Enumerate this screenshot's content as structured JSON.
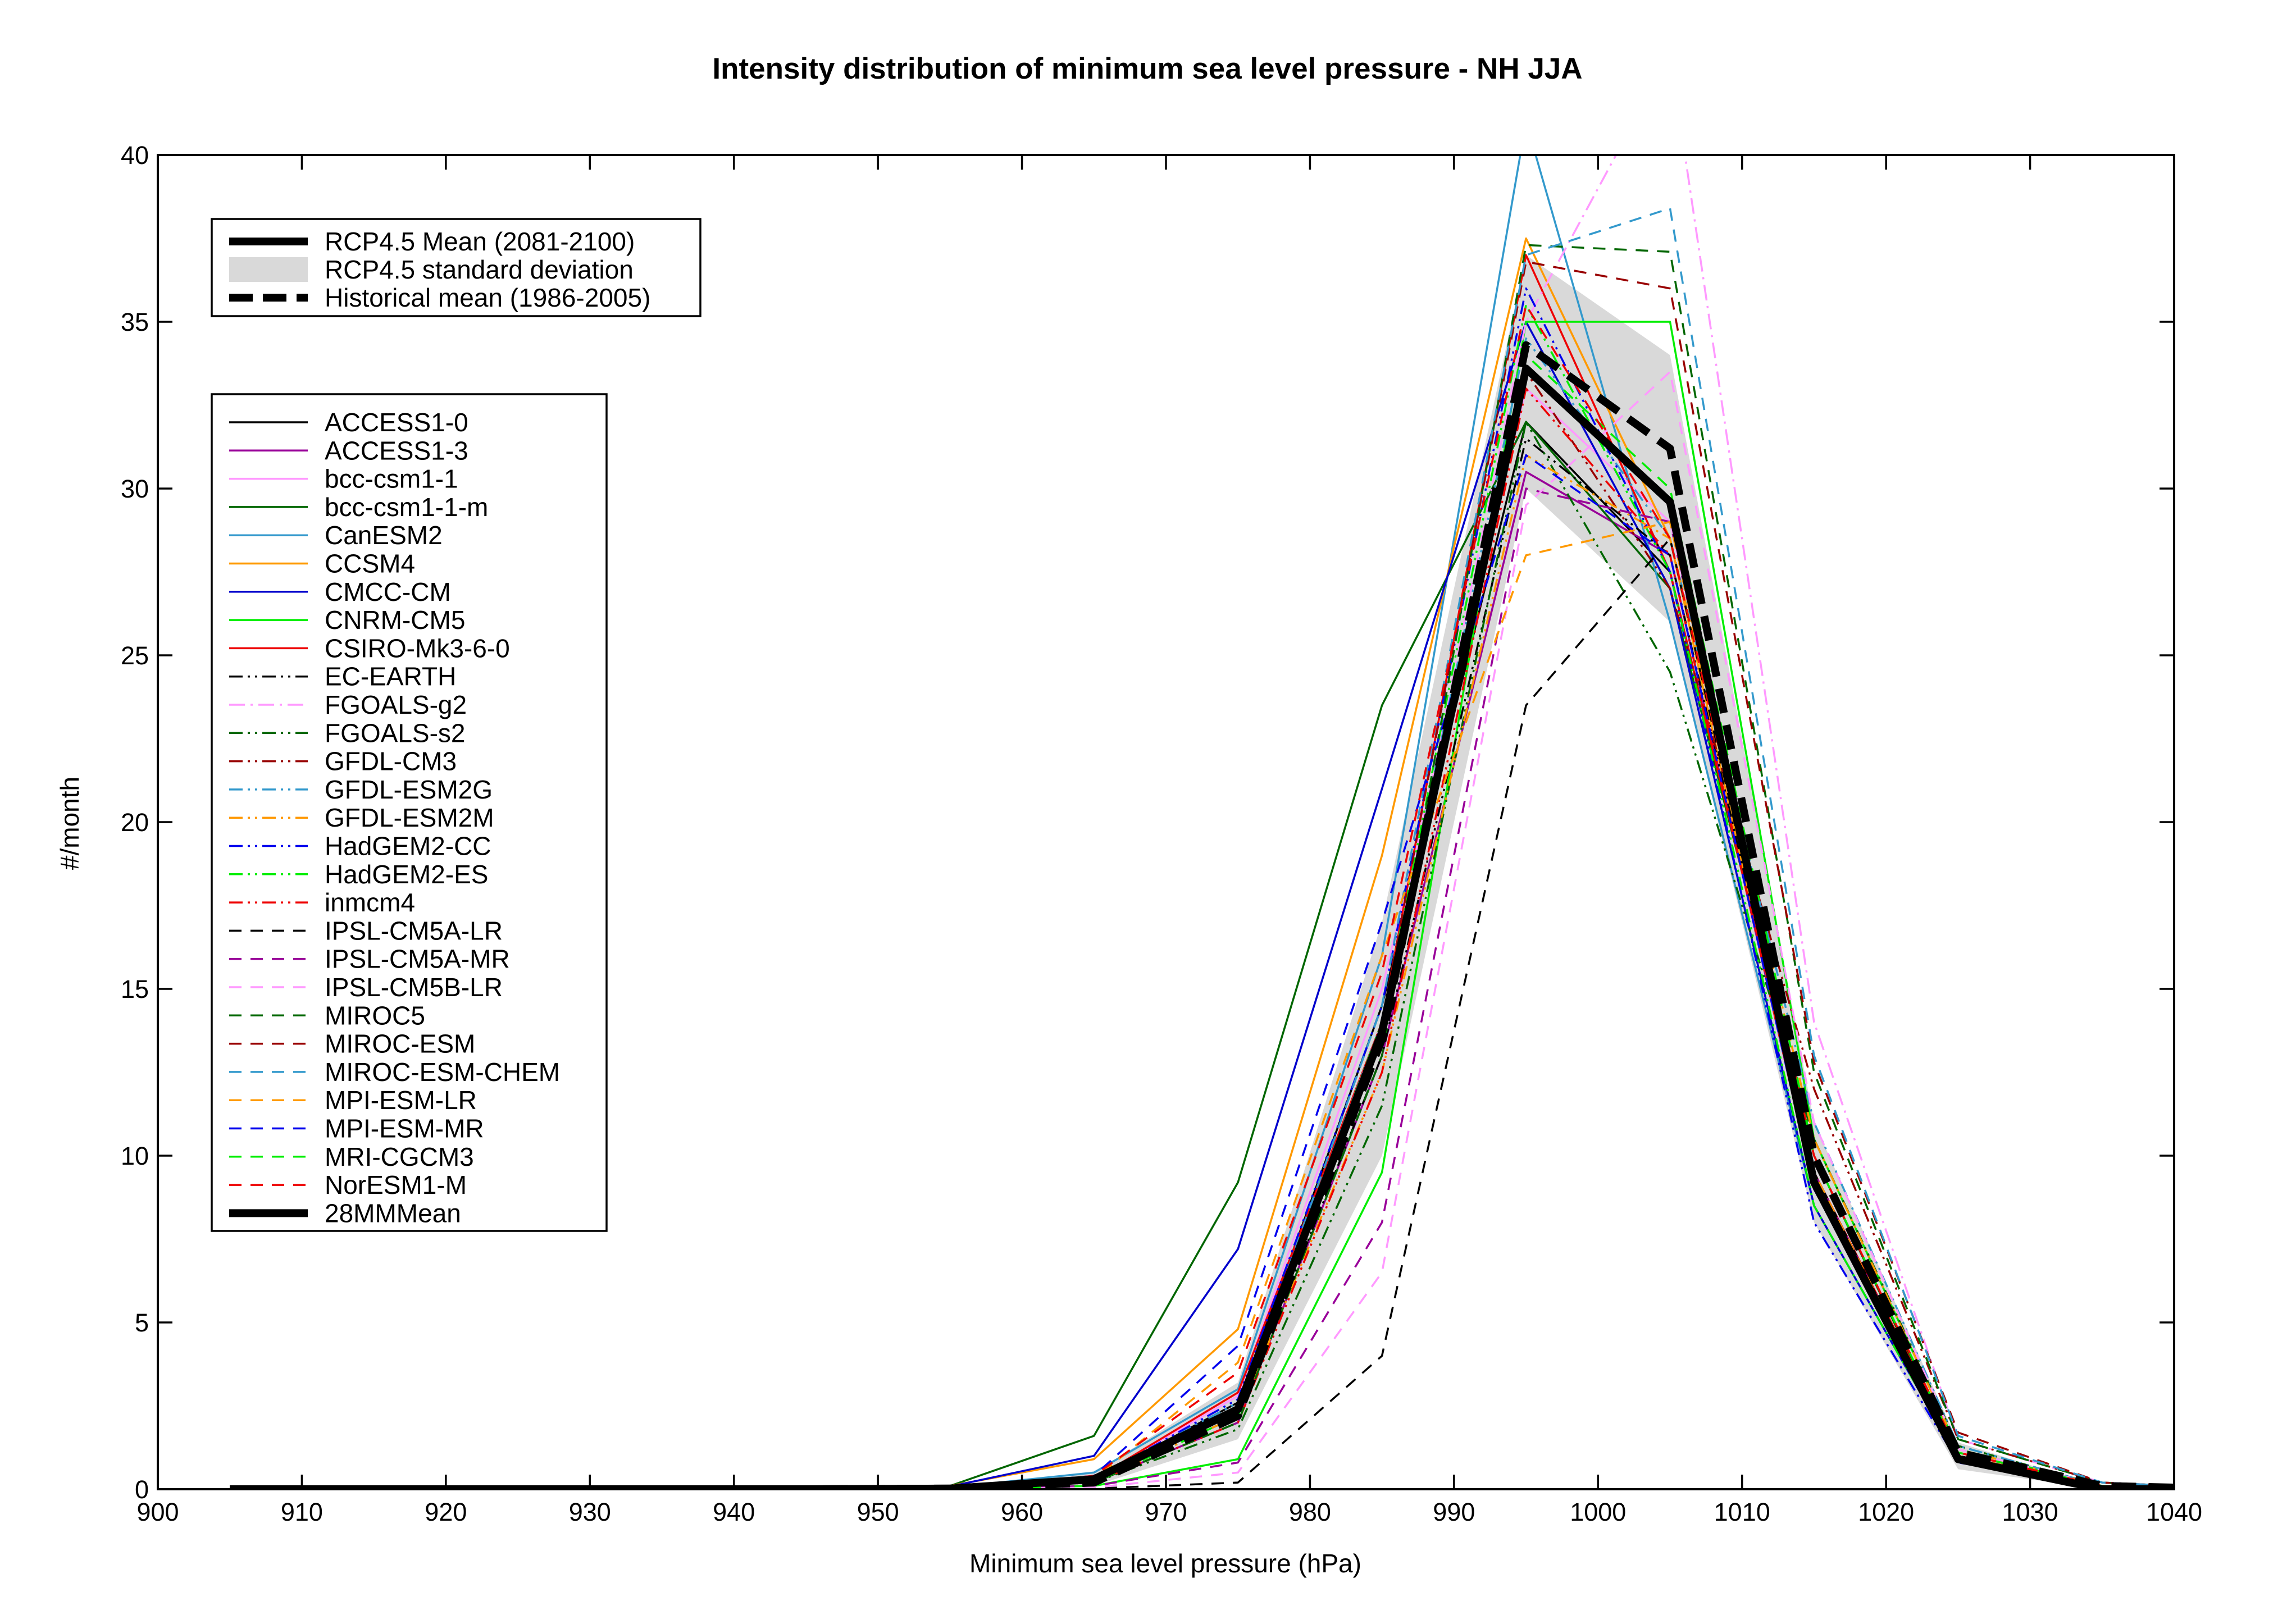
{
  "chart_data": {
    "type": "line",
    "title": "Intensity distribution of minimum sea level pressure - NH JJA",
    "xlabel": "Minimum sea level pressure (hPa)",
    "ylabel": "#/month",
    "xlim": [
      900,
      1040
    ],
    "ylim": [
      0,
      40
    ],
    "xticks": [
      900,
      910,
      920,
      930,
      940,
      950,
      960,
      970,
      980,
      990,
      1000,
      1010,
      1020,
      1030,
      1040
    ],
    "yticks": [
      0,
      5,
      10,
      15,
      20,
      25,
      30,
      35,
      40
    ],
    "grid": false,
    "x": [
      905,
      915,
      925,
      935,
      945,
      955,
      965,
      975,
      985,
      995,
      1005,
      1015,
      1025,
      1035,
      1045
    ],
    "summary_legend": [
      {
        "label": "RCP4.5 Mean (2081-2100)",
        "style": "thick-solid",
        "color": "#000000"
      },
      {
        "label": "RCP4.5 standard deviation",
        "style": "band",
        "color": "#d9d9d9"
      },
      {
        "label": "Historical mean (1986-2005)",
        "style": "thick-dashed",
        "color": "#000000"
      }
    ],
    "std_band": {
      "upper": [
        0,
        0,
        0,
        0,
        0,
        0.05,
        0.5,
        3.2,
        17,
        37,
        34,
        11,
        1.4,
        0.05,
        0
      ],
      "lower": [
        0,
        0,
        0,
        0,
        0,
        0.01,
        0.1,
        1.5,
        10,
        30,
        26,
        8,
        0.6,
        0.0,
        0
      ]
    },
    "historical_mean": [
      0,
      0,
      0,
      0,
      0,
      0.02,
      0.2,
      2.2,
      13.5,
      34.3,
      31.2,
      10.0,
      1.1,
      0.1,
      0
    ],
    "series": [
      {
        "name": "ACCESS1-0",
        "color": "#000000",
        "dash": "solid",
        "values": [
          0,
          0,
          0,
          0,
          0,
          0.03,
          0.3,
          2.6,
          14.5,
          32.0,
          27.5,
          9.5,
          1.0,
          0.1,
          0
        ]
      },
      {
        "name": "ACCESS1-3",
        "color": "#990099",
        "dash": "solid",
        "values": [
          0,
          0,
          0,
          0,
          0,
          0.02,
          0.2,
          2.0,
          13.0,
          30.5,
          28.0,
          9.0,
          1.0,
          0.1,
          0
        ]
      },
      {
        "name": "bcc-csm1-1",
        "color": "#ff99ff",
        "dash": "solid",
        "values": [
          0,
          0,
          0,
          0,
          0,
          0.03,
          0.3,
          2.8,
          15.0,
          33.0,
          29.0,
          9.5,
          1.1,
          0.1,
          0
        ]
      },
      {
        "name": "bcc-csm1-1-m",
        "color": "#006600",
        "dash": "solid",
        "values": [
          0,
          0,
          0,
          0,
          0,
          0.1,
          1.6,
          9.2,
          23.5,
          32.0,
          27.0,
          10.0,
          1.0,
          0.1,
          0
        ]
      },
      {
        "name": "CanESM2",
        "color": "#3399cc",
        "dash": "solid",
        "values": [
          0,
          0,
          0,
          0,
          0,
          0.05,
          0.5,
          3.0,
          16.0,
          41.0,
          26.0,
          8.5,
          0.9,
          0.1,
          0
        ]
      },
      {
        "name": "CCSM4",
        "color": "#ff9900",
        "dash": "solid",
        "values": [
          0,
          0,
          0,
          0,
          0,
          0.1,
          0.9,
          4.8,
          19.0,
          37.5,
          28.5,
          9.0,
          1.0,
          0.1,
          0
        ]
      },
      {
        "name": "CMCC-CM",
        "color": "#0000cc",
        "dash": "solid",
        "values": [
          0,
          0,
          0,
          0,
          0,
          0.08,
          1.0,
          7.2,
          21.0,
          35.0,
          27.0,
          8.5,
          0.9,
          0.1,
          0
        ]
      },
      {
        "name": "CNRM-CM5",
        "color": "#00ee00",
        "dash": "solid",
        "values": [
          0,
          0,
          0,
          0,
          0,
          0.01,
          0.1,
          0.9,
          9.5,
          35.0,
          35.0,
          10.5,
          1.2,
          0.1,
          0
        ]
      },
      {
        "name": "CSIRO-Mk3-6-0",
        "color": "#ee0000",
        "dash": "solid",
        "values": [
          0,
          0,
          0,
          0,
          0,
          0.03,
          0.3,
          2.9,
          14.0,
          37.0,
          27.5,
          9.5,
          1.1,
          0.1,
          0
        ]
      },
      {
        "name": "EC-EARTH",
        "color": "#000000",
        "dash": "dashdotdot",
        "values": [
          0,
          0,
          0,
          0,
          0,
          0.02,
          0.2,
          2.2,
          13.0,
          31.5,
          28.0,
          9.5,
          1.0,
          0.1,
          0
        ]
      },
      {
        "name": "FGOALS-g2",
        "color": "#ff99ff",
        "dash": "dashdot",
        "values": [
          0,
          0,
          0,
          0,
          0,
          0.02,
          0.3,
          2.5,
          14.0,
          35.0,
          43.0,
          14.0,
          1.5,
          0.2,
          0
        ]
      },
      {
        "name": "FGOALS-s2",
        "color": "#006600",
        "dash": "dashdotdot",
        "values": [
          0,
          0,
          0,
          0,
          0,
          0.02,
          0.2,
          1.8,
          11.5,
          32.0,
          24.5,
          10.5,
          1.3,
          0.1,
          0
        ]
      },
      {
        "name": "GFDL-CM3",
        "color": "#990000",
        "dash": "dashdotdot",
        "values": [
          0,
          0,
          0,
          0,
          0,
          0.03,
          0.3,
          2.4,
          13.5,
          33.5,
          27.0,
          12.0,
          1.5,
          0.2,
          0
        ]
      },
      {
        "name": "GFDL-ESM2G",
        "color": "#3399cc",
        "dash": "dashdotdot",
        "values": [
          0,
          0,
          0,
          0,
          0,
          0.03,
          0.3,
          2.6,
          14.0,
          34.5,
          28.5,
          11.0,
          1.3,
          0.1,
          0
        ]
      },
      {
        "name": "GFDL-ESM2M",
        "color": "#ff9900",
        "dash": "dashdotdot",
        "values": [
          0,
          0,
          0,
          0,
          0,
          0.02,
          0.2,
          2.2,
          12.5,
          31.0,
          28.5,
          10.5,
          1.2,
          0.1,
          0
        ]
      },
      {
        "name": "HadGEM2-CC",
        "color": "#0000ee",
        "dash": "dashdotdot",
        "values": [
          0,
          0,
          0,
          0,
          0,
          0.03,
          0.3,
          2.7,
          14.5,
          36.0,
          27.5,
          8.0,
          0.8,
          0.1,
          0
        ]
      },
      {
        "name": "HadGEM2-ES",
        "color": "#00ee00",
        "dash": "dashdotdot",
        "values": [
          0,
          0,
          0,
          0,
          0,
          0.03,
          0.3,
          2.5,
          14.0,
          35.5,
          27.5,
          8.5,
          0.9,
          0.1,
          0
        ]
      },
      {
        "name": "inmcm4",
        "color": "#ee0000",
        "dash": "dashdotdot",
        "values": [
          0,
          0,
          0,
          0,
          0,
          0.02,
          0.2,
          2.0,
          12.5,
          33.0,
          28.0,
          9.0,
          1.0,
          0.1,
          0
        ]
      },
      {
        "name": "IPSL-CM5A-LR",
        "color": "#000000",
        "dash": "dashed",
        "values": [
          0,
          0,
          0,
          0,
          0,
          0.0,
          0.02,
          0.2,
          4.0,
          23.5,
          28.5,
          9.5,
          1.0,
          0.1,
          0
        ]
      },
      {
        "name": "IPSL-CM5A-MR",
        "color": "#990099",
        "dash": "dashed",
        "values": [
          0,
          0,
          0,
          0,
          0,
          0.01,
          0.1,
          0.8,
          8.0,
          30.0,
          29.0,
          9.5,
          1.0,
          0.1,
          0
        ]
      },
      {
        "name": "IPSL-CM5B-LR",
        "color": "#ff99ff",
        "dash": "dashed",
        "values": [
          0,
          0,
          0,
          0,
          0,
          0.0,
          0.05,
          0.5,
          6.5,
          29.5,
          33.5,
          11.0,
          1.2,
          0.1,
          0
        ]
      },
      {
        "name": "MIROC5",
        "color": "#006600",
        "dash": "dashed",
        "values": [
          0,
          0,
          0,
          0,
          0,
          0.02,
          0.2,
          2.0,
          13.0,
          37.3,
          37.1,
          12.5,
          1.5,
          0.2,
          0
        ]
      },
      {
        "name": "MIROC-ESM",
        "color": "#990000",
        "dash": "dashed",
        "values": [
          0,
          0,
          0,
          0,
          0,
          0.03,
          0.3,
          2.3,
          14.0,
          36.8,
          36.0,
          12.8,
          1.7,
          0.2,
          0
        ]
      },
      {
        "name": "MIROC-ESM-CHEM",
        "color": "#3399cc",
        "dash": "dashed",
        "values": [
          0,
          0,
          0,
          0,
          0,
          0.03,
          0.3,
          2.4,
          14.5,
          37.0,
          38.4,
          13.0,
          1.6,
          0.2,
          0
        ]
      },
      {
        "name": "MPI-ESM-LR",
        "color": "#ff9900",
        "dash": "dashed",
        "values": [
          0,
          0,
          0,
          0,
          0,
          0.02,
          0.3,
          3.8,
          16.0,
          28.0,
          29.0,
          9.5,
          1.0,
          0.1,
          0
        ]
      },
      {
        "name": "MPI-ESM-MR",
        "color": "#0000ee",
        "dash": "dashed",
        "values": [
          0,
          0,
          0,
          0,
          0,
          0.03,
          0.4,
          4.3,
          17.0,
          31.0,
          28.0,
          9.0,
          0.9,
          0.1,
          0
        ]
      },
      {
        "name": "MRI-CGCM3",
        "color": "#00ee00",
        "dash": "dashed",
        "values": [
          0,
          0,
          0,
          0,
          0,
          0.02,
          0.2,
          2.2,
          13.5,
          34.0,
          30.0,
          10.0,
          1.1,
          0.1,
          0
        ]
      },
      {
        "name": "NorESM1-M",
        "color": "#ee0000",
        "dash": "dashed",
        "values": [
          0,
          0,
          0,
          0,
          0,
          0.03,
          0.4,
          3.5,
          15.5,
          35.5,
          28.5,
          10.0,
          1.1,
          0.1,
          0
        ]
      },
      {
        "name": "28MMMean",
        "color": "#000000",
        "dash": "thick",
        "values": [
          0,
          0,
          0,
          0,
          0,
          0.02,
          0.3,
          2.4,
          13.7,
          33.6,
          29.6,
          9.2,
          0.9,
          0.0,
          0
        ]
      }
    ]
  }
}
